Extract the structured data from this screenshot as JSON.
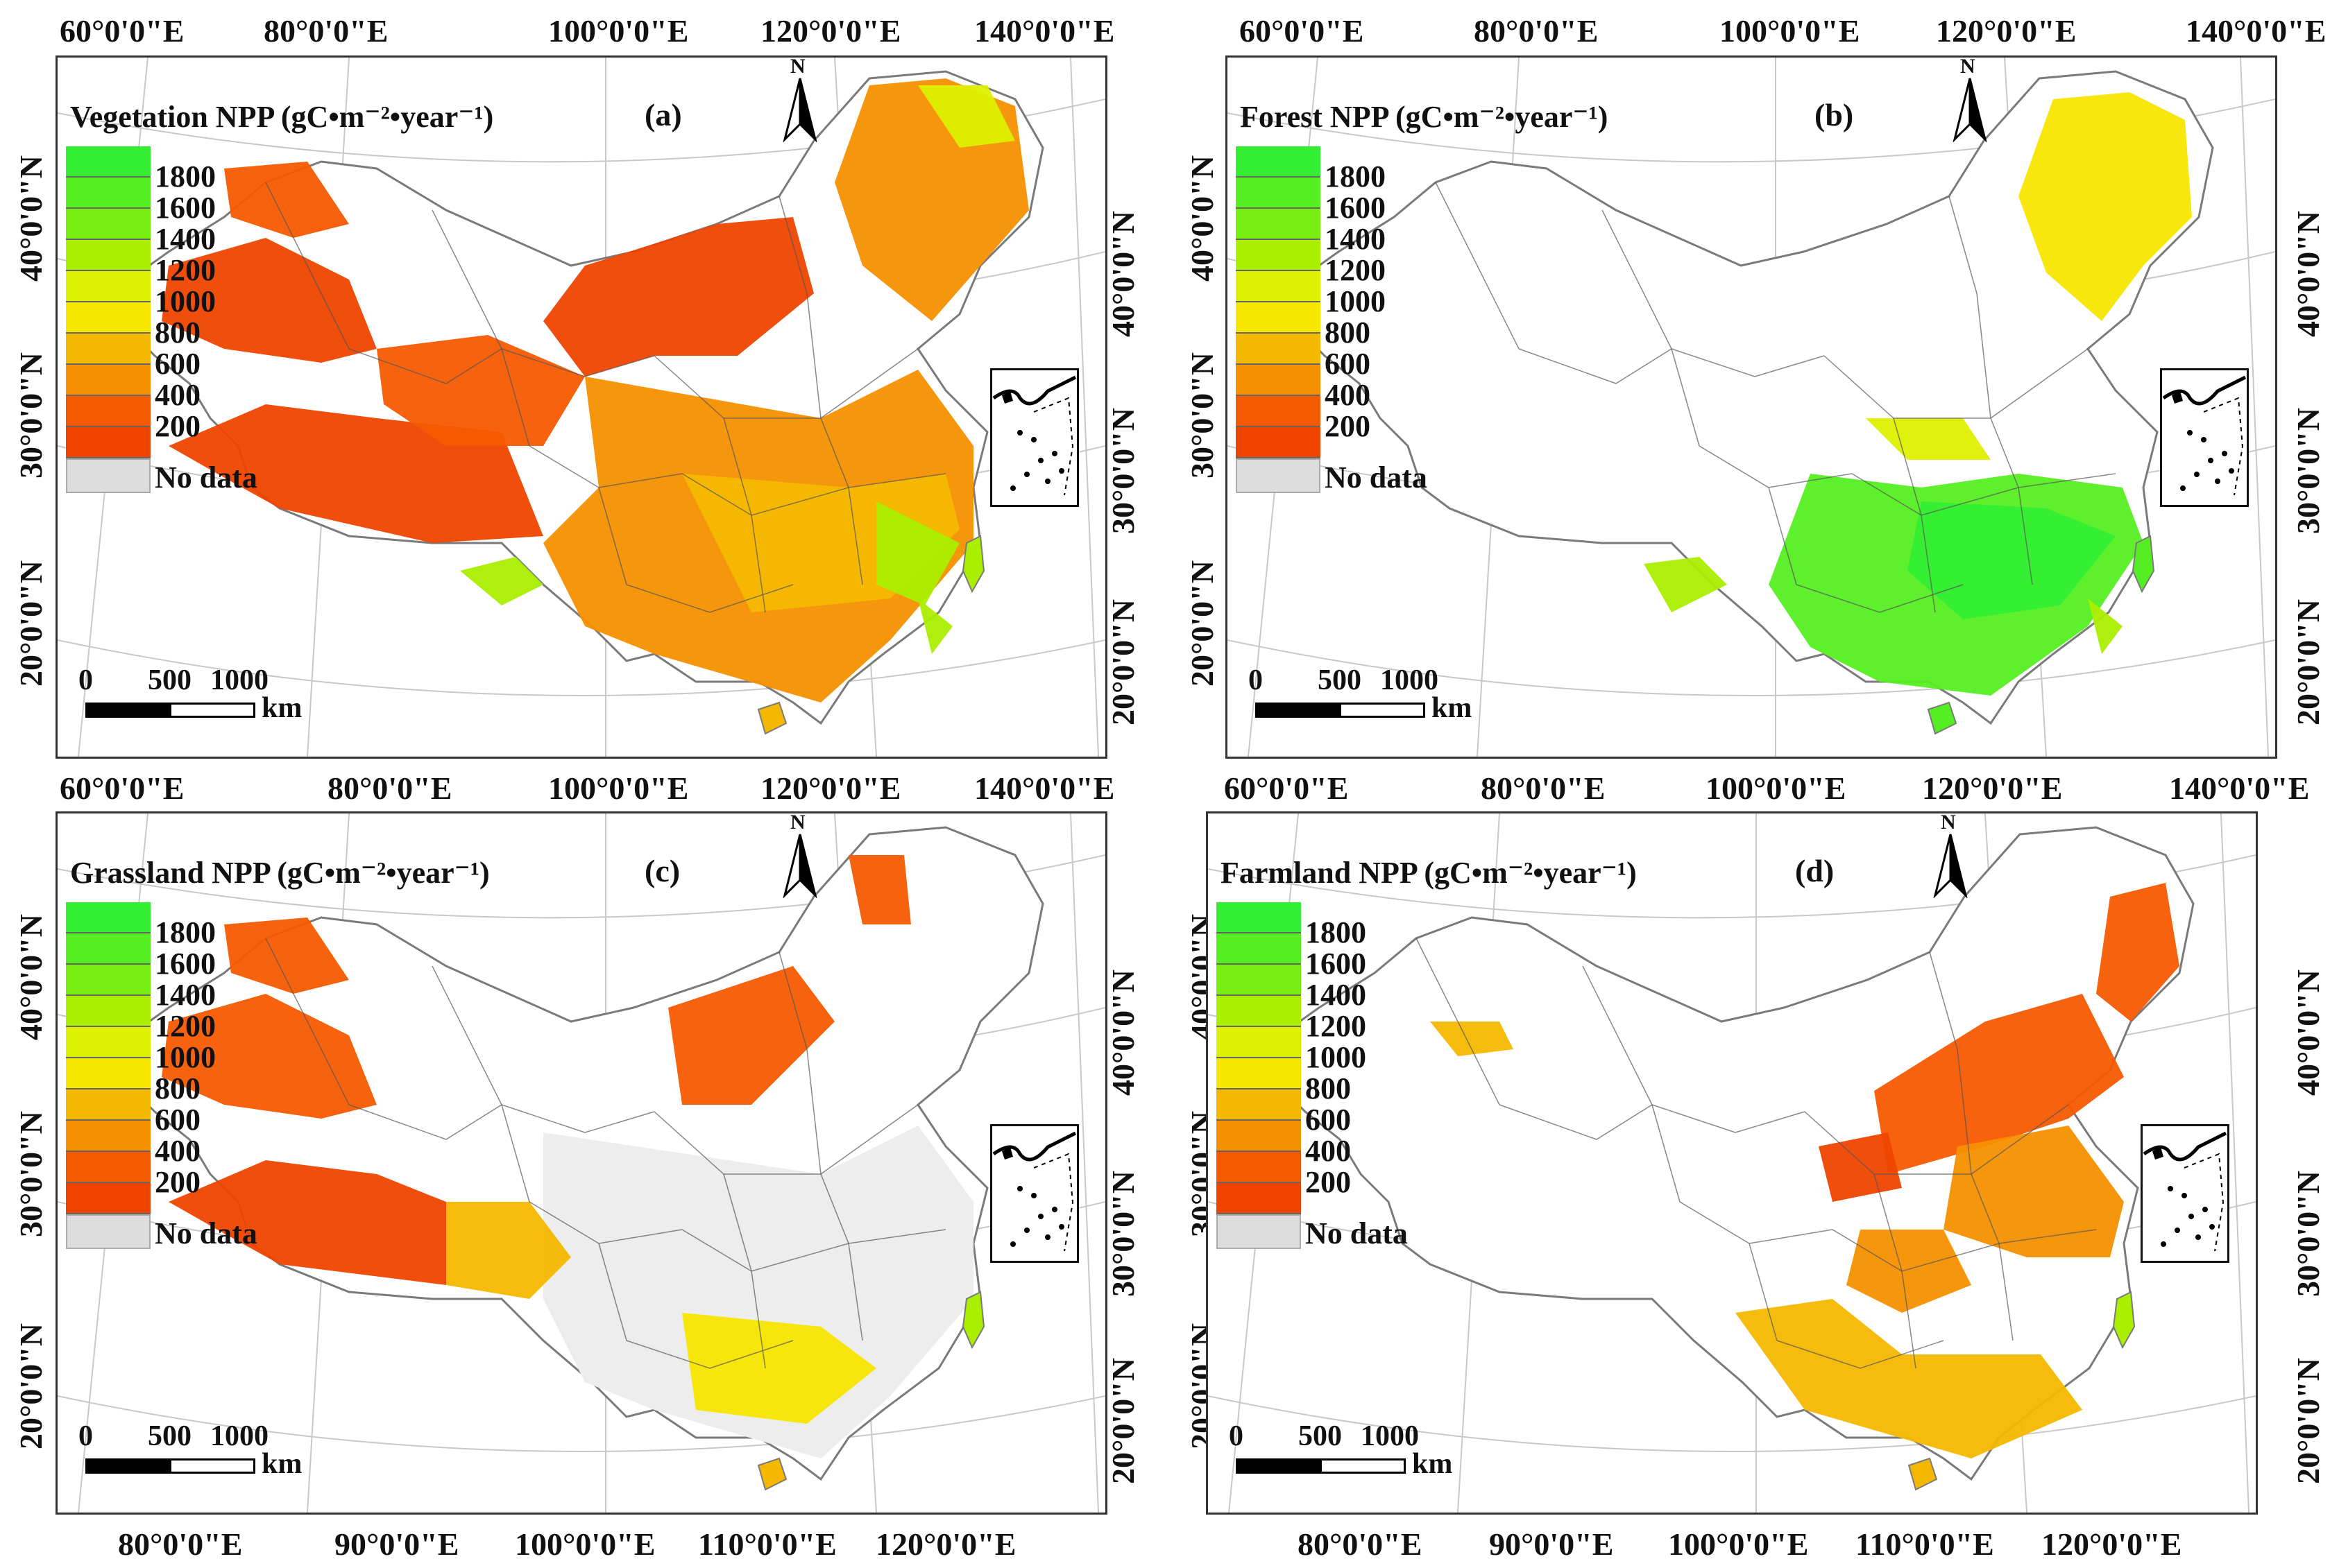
{
  "colors": {
    "nodata": "#dddddd",
    "border": "#7a7a7a",
    "classes": [
      "#33ee33",
      "#55ee22",
      "#77ee11",
      "#aaee00",
      "#ddf000",
      "#f7e600",
      "#f5b800",
      "#f59000",
      "#f55a00",
      "#ee4400"
    ]
  },
  "legend": {
    "labels": [
      "1800",
      "1600",
      "1400",
      "1200",
      "1000",
      "800",
      "600",
      "400",
      "200"
    ],
    "nodata_label": "No data"
  },
  "scale": {
    "t0": "0",
    "t500": "500",
    "t1000": "1000",
    "unit": "km"
  },
  "north_label": "N",
  "panels": [
    {
      "id": "a",
      "title": "Vegetation NPP (gC•m⁻²•year⁻¹)",
      "label": "(a)"
    },
    {
      "id": "b",
      "title": "Forest NPP (gC•m⁻²•year⁻¹)",
      "label": "(b)"
    },
    {
      "id": "c",
      "title": "Grassland NPP (gC•m⁻²•year⁻¹)",
      "label": "(c)"
    },
    {
      "id": "d",
      "title": "Farmland NPP (gC•m⁻²•year⁻¹)",
      "label": "(d)"
    }
  ],
  "coords": {
    "top": [
      "60°0'0\"E",
      "80°0'0\"E",
      "100°0'0\"E",
      "120°0'0\"E",
      "140°0'0\"E"
    ],
    "middle": [
      "60°0'0\"E",
      "80°0'0\"E",
      "100°0'0\"E",
      "120°0'0\"E",
      "140°0'0\"E"
    ],
    "middle_right": [
      "60°0'0\"E",
      "80°0'0\"E",
      "100°0'0\"E",
      "120°0'0\"E",
      "140°0'0\"E"
    ],
    "top_right": [
      "60°0'0\"E",
      "80°0'0\"E",
      "100°0'0\"E",
      "120°0'0\"E",
      "140°0'0\"E"
    ],
    "bottom": [
      "80°0'0\"E",
      "90°0'0\"E",
      "100°0'0\"E",
      "110°0'0\"E",
      "120°0'0\"E"
    ],
    "left_lat": [
      "40°0'0\"N",
      "30°0'0\"N",
      "20°0'0\"N"
    ],
    "right_lat": [
      "40°0'0\"N",
      "30°0'0\"N",
      "20°0'0\"N"
    ]
  }
}
